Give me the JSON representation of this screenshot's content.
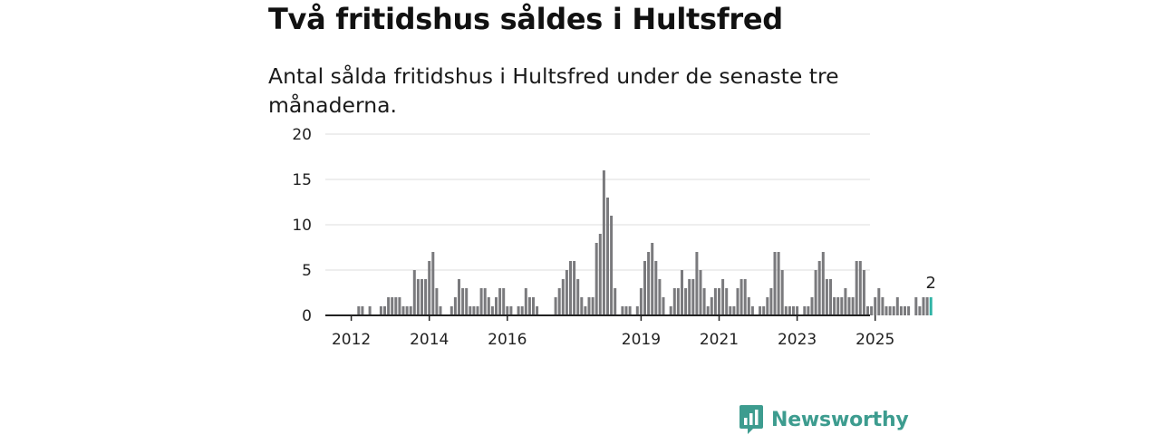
{
  "title": "Två fritidshus såldes i Hultsfred",
  "subtitle": "Antal sålda fritidshus i Hultsfred under de senaste tre månaderna.",
  "brand": "Newsworthy",
  "colors": {
    "bar": "#7a7a7d",
    "highlight": "#2fb3a5",
    "grid": "#dddddd",
    "axis": "#222222",
    "brand": "#3d9c8f"
  },
  "chart_data": {
    "type": "bar",
    "x_start": "2012-01",
    "interval": "month",
    "ylim": [
      0,
      20
    ],
    "yticks": [
      0,
      5,
      10,
      15,
      20
    ],
    "xticks": [
      {
        "label": "2012",
        "index": 6
      },
      {
        "label": "2014",
        "index": 27
      },
      {
        "label": "2016",
        "index": 48
      },
      {
        "label": "2019",
        "index": 84
      },
      {
        "label": "2021",
        "index": 105
      },
      {
        "label": "2023",
        "index": 126
      },
      {
        "label": "2025",
        "index": 147
      }
    ],
    "values": [
      0,
      0,
      0,
      0,
      0,
      0,
      0,
      0,
      1,
      1,
      0,
      1,
      0,
      0,
      1,
      1,
      2,
      2,
      2,
      2,
      1,
      1,
      1,
      5,
      4,
      4,
      4,
      6,
      7,
      3,
      1,
      0,
      0,
      1,
      2,
      4,
      3,
      3,
      1,
      1,
      1,
      3,
      3,
      2,
      1,
      2,
      3,
      3,
      1,
      1,
      0,
      1,
      1,
      3,
      2,
      2,
      1,
      0,
      0,
      0,
      0,
      2,
      3,
      4,
      5,
      6,
      6,
      4,
      2,
      1,
      2,
      2,
      8,
      9,
      16,
      13,
      11,
      3,
      0,
      1,
      1,
      1,
      0,
      1,
      3,
      6,
      7,
      8,
      6,
      4,
      2,
      0,
      1,
      3,
      3,
      5,
      3,
      4,
      4,
      7,
      5,
      3,
      1,
      2,
      3,
      3,
      4,
      3,
      1,
      1,
      3,
      4,
      4,
      2,
      1,
      0,
      1,
      1,
      2,
      3,
      7,
      7,
      5,
      1,
      1,
      1,
      1,
      0,
      1,
      1,
      2,
      5,
      6,
      7,
      4,
      4,
      2,
      2,
      2,
      3,
      2,
      2,
      6,
      6,
      5,
      1,
      1,
      2,
      3,
      2,
      1,
      1,
      1,
      2,
      1,
      1,
      1,
      0,
      2,
      1,
      2,
      2,
      2
    ],
    "highlight_label": "2"
  }
}
